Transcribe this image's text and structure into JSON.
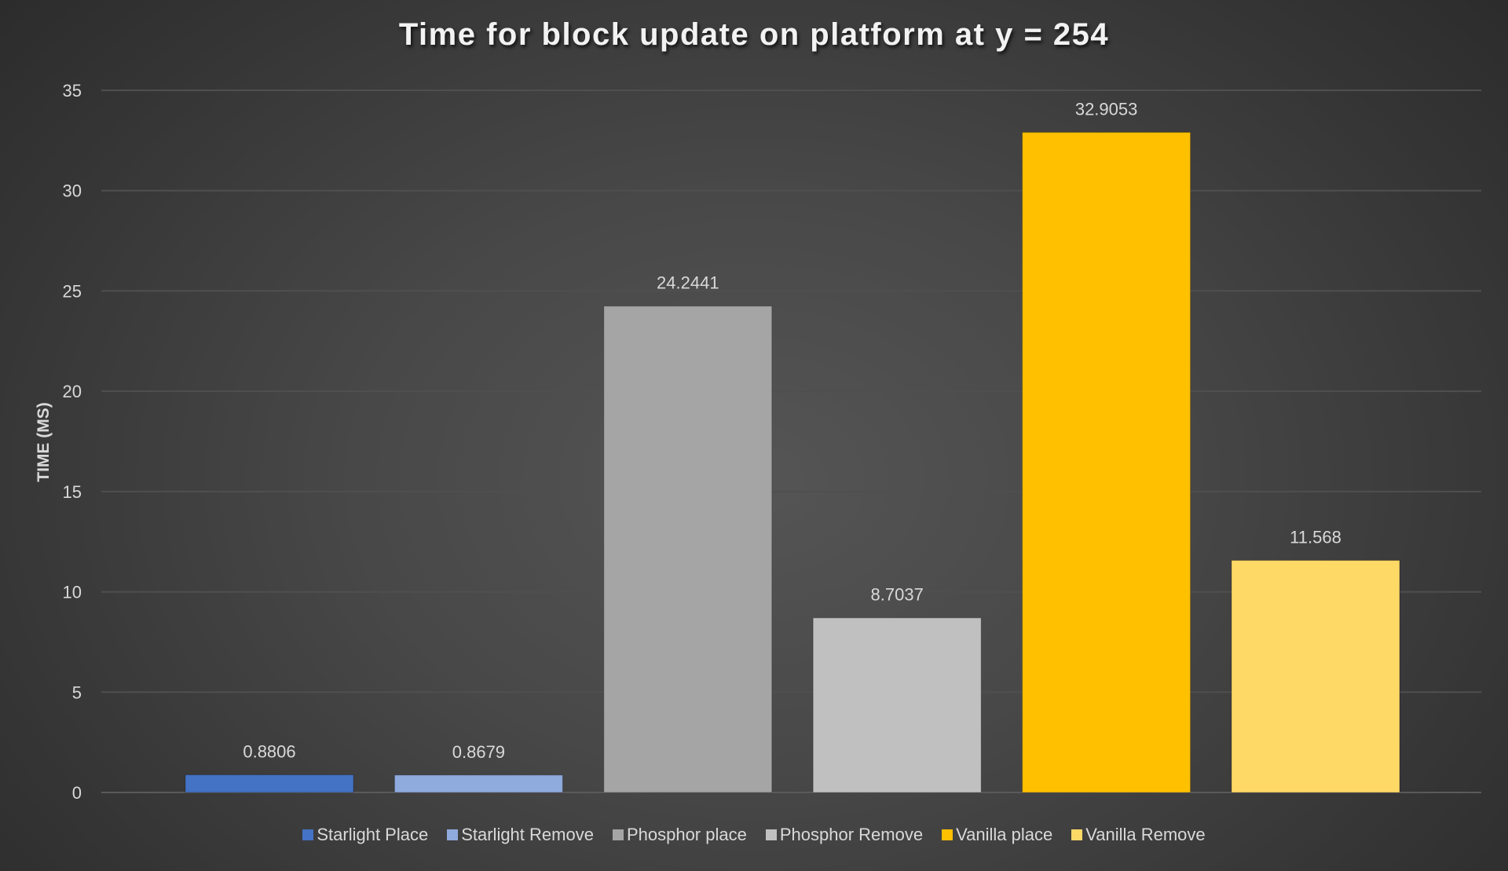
{
  "chart_data": {
    "type": "bar",
    "title": "Time for block update on platform at y = 254",
    "xlabel": "",
    "ylabel": "TIME (MS)",
    "ylim": [
      0,
      35
    ],
    "yticks": [
      0,
      5,
      10,
      15,
      20,
      25,
      30,
      35
    ],
    "grid": true,
    "legend_position": "bottom",
    "series": [
      {
        "name": "Starlight Place",
        "value": 0.8806,
        "label": "0.8806",
        "color": "#4472c4"
      },
      {
        "name": "Starlight Remove",
        "value": 0.8679,
        "label": "0.8679",
        "color": "#8faadc"
      },
      {
        "name": "Phosphor place",
        "value": 24.2441,
        "label": "24.2441",
        "color": "#a5a5a5"
      },
      {
        "name": "Phosphor Remove",
        "value": 8.7037,
        "label": "8.7037",
        "color": "#c0c0c0"
      },
      {
        "name": "Vanilla place",
        "value": 32.9053,
        "label": "32.9053",
        "color": "#ffc000"
      },
      {
        "name": "Vanilla Remove",
        "value": 11.568,
        "label": "11.568",
        "color": "#ffd966"
      }
    ]
  }
}
